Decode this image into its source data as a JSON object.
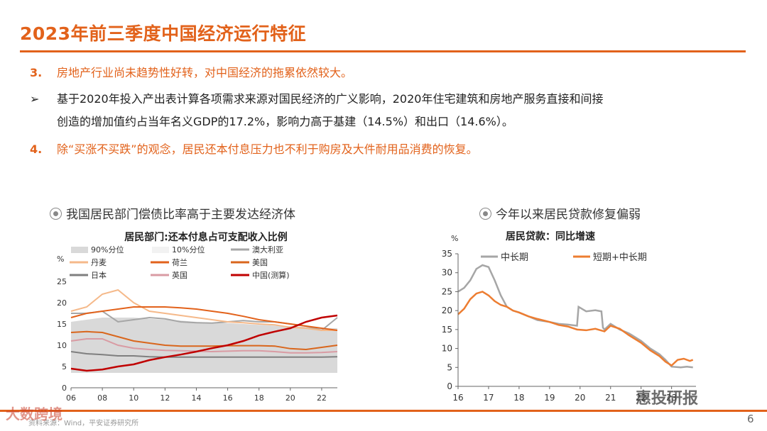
{
  "title": "2023年前三季度中国经济运行特征",
  "points": [
    {
      "num": "3.",
      "text": "房地产行业尚未趋势性好转，对中国经济的拖累依然较大。"
    },
    {
      "bullet": "➢",
      "line1": "基于2020年投入产出表计算各项需求来源对国民经济的广义影响，2020年住宅建筑和房地产服务直接和间接",
      "line2": "创造的增加值约占当年名义GDP的17.2%，影响力高于基建（14.5%）和出口（14.6%）。"
    },
    {
      "num": "4.",
      "text": "除“买涨不买跌”的观念，居民还本付息压力也不利于购房及大件耐用品消费的恢复。"
    }
  ],
  "chart1": {
    "caption": "我国居民部门偿债比率高于主要发达经济体",
    "chart_data": {
      "type": "line",
      "title": "居民部门:还本付息占可支配收入比例",
      "ylabel": "%",
      "ylim": [
        0,
        25
      ],
      "yticks": [
        "0",
        "5",
        "10",
        "15",
        "20",
        "25"
      ],
      "xlim": [
        2006,
        2023
      ],
      "xticks": [
        "06",
        "08",
        "10",
        "12",
        "14",
        "16",
        "18",
        "20",
        "22"
      ],
      "legend": [
        "90%分位",
        "10%分位",
        "澳大利亚",
        "丹麦",
        "荷兰",
        "美国",
        "日本",
        "英国",
        "中国(测算)"
      ],
      "band": {
        "name": "90%分位/10%分位",
        "x": [
          2006,
          2007,
          2008,
          2009,
          2010,
          2011,
          2012,
          2013,
          2014,
          2015,
          2016,
          2017,
          2018,
          2019,
          2020,
          2021,
          2022,
          2023
        ],
        "upper": [
          15.5,
          16,
          16.5,
          16.5,
          16.5,
          16.2,
          16,
          15.8,
          15.5,
          15.3,
          15.2,
          15,
          14.8,
          14.6,
          14.5,
          14.3,
          14,
          14
        ],
        "lower": [
          3.5,
          3.5,
          3.5,
          3.5,
          3.5,
          3.5,
          3.5,
          3.5,
          3.5,
          3.5,
          3.5,
          3.5,
          3.5,
          3.5,
          3.5,
          3.5,
          3.5,
          3.5
        ]
      },
      "series": [
        {
          "name": "澳大利亚",
          "color": "#a6a6a6",
          "x": [
            2006,
            2007,
            2008,
            2009,
            2010,
            2011,
            2012,
            2013,
            2014,
            2015,
            2016,
            2017,
            2018,
            2019,
            2020,
            2021,
            2022,
            2023
          ],
          "values": [
            17.5,
            17.5,
            18,
            15.5,
            16,
            16.5,
            16.2,
            15.5,
            15.3,
            15.2,
            15.5,
            15.8,
            15.5,
            15.5,
            15,
            14.5,
            13.5,
            16.5
          ]
        },
        {
          "name": "丹麦",
          "color": "#f5b98a",
          "x": [
            2006,
            2007,
            2008,
            2009,
            2010,
            2011,
            2012,
            2013,
            2014,
            2015,
            2016,
            2017,
            2018,
            2019,
            2020,
            2021,
            2022,
            2023
          ],
          "values": [
            18,
            19,
            22,
            23,
            20,
            18,
            17.5,
            17,
            16.5,
            16,
            15.5,
            15.3,
            15,
            14.8,
            14.2,
            14,
            13.5,
            13.5
          ]
        },
        {
          "name": "荷兰",
          "color": "#e2621b",
          "x": [
            2006,
            2007,
            2008,
            2009,
            2010,
            2011,
            2012,
            2013,
            2014,
            2015,
            2016,
            2017,
            2018,
            2019,
            2020,
            2021,
            2022,
            2023
          ],
          "values": [
            16.5,
            17.5,
            18,
            18.5,
            19,
            19,
            19,
            18.8,
            18.5,
            18,
            17.5,
            16.8,
            16,
            15.5,
            15,
            14.5,
            14,
            13.5
          ]
        },
        {
          "name": "美国",
          "color": "#d9661c",
          "x": [
            2006,
            2007,
            2008,
            2009,
            2010,
            2011,
            2012,
            2013,
            2014,
            2015,
            2016,
            2017,
            2018,
            2019,
            2020,
            2021,
            2022,
            2023
          ],
          "values": [
            13,
            13.2,
            13,
            12,
            11,
            10.5,
            10,
            9.8,
            9.8,
            9.8,
            9.9,
            9.9,
            9.9,
            9.8,
            9.2,
            9,
            9.5,
            10
          ]
        },
        {
          "name": "日本",
          "color": "#7f7f7f",
          "x": [
            2006,
            2007,
            2008,
            2009,
            2010,
            2011,
            2012,
            2013,
            2014,
            2015,
            2016,
            2017,
            2018,
            2019,
            2020,
            2021,
            2022,
            2023
          ],
          "values": [
            8.5,
            8,
            7.8,
            7.5,
            7.5,
            7.3,
            7.2,
            7.2,
            7.2,
            7.2,
            7.2,
            7.2,
            7.2,
            7.2,
            7.2,
            7.2,
            7.2,
            7.3
          ]
        },
        {
          "name": "英国",
          "color": "#d99ba3",
          "x": [
            2006,
            2007,
            2008,
            2009,
            2010,
            2011,
            2012,
            2013,
            2014,
            2015,
            2016,
            2017,
            2018,
            2019,
            2020,
            2021,
            2022,
            2023
          ],
          "values": [
            11,
            11.5,
            11.5,
            10,
            9.3,
            9,
            8.8,
            8.7,
            8.6,
            8.5,
            8.6,
            8.7,
            8.7,
            8.5,
            8.2,
            8.2,
            8.3,
            8.5
          ]
        },
        {
          "name": "中国(测算)",
          "color": "#c00000",
          "x": [
            2006,
            2007,
            2008,
            2009,
            2010,
            2011,
            2012,
            2013,
            2014,
            2015,
            2016,
            2017,
            2018,
            2019,
            2020,
            2021,
            2022,
            2023
          ],
          "values": [
            4.5,
            4,
            4.3,
            5,
            5.5,
            6.5,
            7.2,
            7.8,
            8.5,
            9.3,
            10,
            11,
            12.3,
            13.2,
            14,
            15.5,
            16.5,
            17
          ]
        }
      ]
    }
  },
  "chart2": {
    "caption": "今年以来居民贷款修复偏弱",
    "chart_data": {
      "type": "line",
      "title": "居民贷款：同比增速",
      "ylabel": "%",
      "ylim": [
        0,
        35
      ],
      "yticks": [
        "0",
        "5",
        "10",
        "15",
        "20",
        "25",
        "30",
        "35"
      ],
      "xlim": [
        2016,
        2023.8
      ],
      "xticks": [
        "16",
        "17",
        "18",
        "19",
        "20",
        "21",
        "22",
        "23"
      ],
      "legend": [
        "中长期",
        "短期+中长期"
      ],
      "series": [
        {
          "name": "中长期",
          "color": "#a6a6a6",
          "x": [
            2016,
            2016.2,
            2016.4,
            2016.6,
            2016.8,
            2017,
            2017.2,
            2017.4,
            2017.6,
            2017.8,
            2018,
            2018.3,
            2018.6,
            2019,
            2019.3,
            2019.6,
            2019.9,
            2019.95,
            2020.2,
            2020.5,
            2020.7,
            2020.75,
            2020.8,
            2021,
            2021.3,
            2021.6,
            2022,
            2022.3,
            2022.6,
            2022.8,
            2023,
            2023.3,
            2023.5,
            2023.7
          ],
          "values": [
            25,
            26,
            28,
            31,
            32,
            31.5,
            28,
            24,
            21,
            20,
            19.5,
            18.5,
            17.5,
            17,
            16.5,
            16.3,
            16,
            21,
            19.8,
            20.1,
            19.8,
            15.5,
            15,
            16.5,
            15,
            14,
            12,
            10,
            8.5,
            7,
            5.2,
            5,
            5.2,
            5
          ]
        },
        {
          "name": "短期+中长期",
          "color": "#ed7d31",
          "x": [
            2016,
            2016.2,
            2016.4,
            2016.6,
            2016.8,
            2017,
            2017.2,
            2017.4,
            2017.6,
            2017.8,
            2018,
            2018.3,
            2018.6,
            2019,
            2019.3,
            2019.6,
            2019.9,
            2020.2,
            2020.5,
            2020.8,
            2021,
            2021.3,
            2021.6,
            2022,
            2022.3,
            2022.6,
            2022.8,
            2023,
            2023.2,
            2023.4,
            2023.6,
            2023.7
          ],
          "values": [
            19,
            20.5,
            23,
            24.5,
            25,
            24,
            22.5,
            21.5,
            21,
            20,
            19.5,
            18.5,
            17.8,
            17,
            16.2,
            15.8,
            15,
            14.8,
            15.2,
            14.5,
            16,
            15.2,
            13.5,
            11.5,
            9.5,
            8,
            6.5,
            5.5,
            7,
            7.3,
            6.7,
            7
          ]
        }
      ]
    }
  },
  "footer": {
    "source": "资料来源：Wind，平安证券研究所",
    "page": "6"
  },
  "watermarks": {
    "left": "大数跨境",
    "right": "惠投研报"
  },
  "colors": {
    "accent": "#e2621b",
    "china": "#c00000",
    "band": "#d9d9d9"
  }
}
